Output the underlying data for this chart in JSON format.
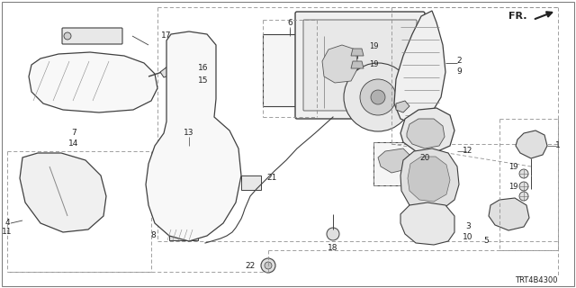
{
  "bg_color": "#ffffff",
  "diagram_code": "TRT4B4300",
  "line_color": "#404040",
  "dash_color": "#909090",
  "text_color": "#222222"
}
